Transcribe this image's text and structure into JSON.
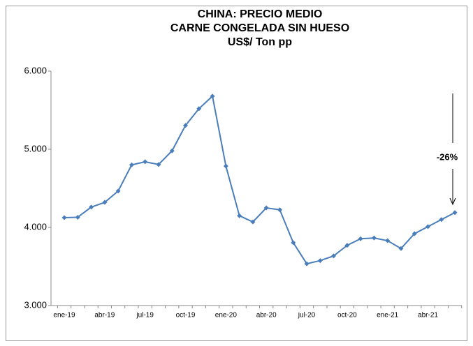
{
  "chart_data": {
    "type": "line",
    "title": [
      "CHINA: PRECIO MEDIO",
      "CARNE CONGELADA SIN HUESO",
      "US$/ Ton pp"
    ],
    "categories": [
      "ene-19",
      null,
      null,
      "abr-19",
      null,
      null,
      "jul-19",
      null,
      null,
      "oct-19",
      null,
      null,
      "ene-20",
      null,
      null,
      "abr-20",
      null,
      null,
      "jul-20",
      null,
      null,
      "oct-20",
      null,
      null,
      "ene-21",
      null,
      null,
      "abr-21",
      null,
      null
    ],
    "series": [
      {
        "name": "Precio medio",
        "color": "#4a7ebb",
        "values": [
          4125,
          4130,
          4260,
          4320,
          4465,
          4800,
          4840,
          4805,
          4980,
          5305,
          5520,
          5680,
          4785,
          4150,
          4070,
          4250,
          4225,
          3805,
          3535,
          3575,
          3635,
          3770,
          3855,
          3865,
          3830,
          3730,
          3920,
          4010,
          4100,
          4190
        ]
      }
    ],
    "ylim": [
      3000,
      6000
    ],
    "yticks": [
      {
        "value": 3000,
        "label": "3.000"
      },
      {
        "value": 4000,
        "label": "4.000"
      },
      {
        "value": 5000,
        "label": "5.000"
      },
      {
        "value": 6000,
        "label": "6.000"
      }
    ],
    "annotation": "-26%",
    "grid": false
  }
}
